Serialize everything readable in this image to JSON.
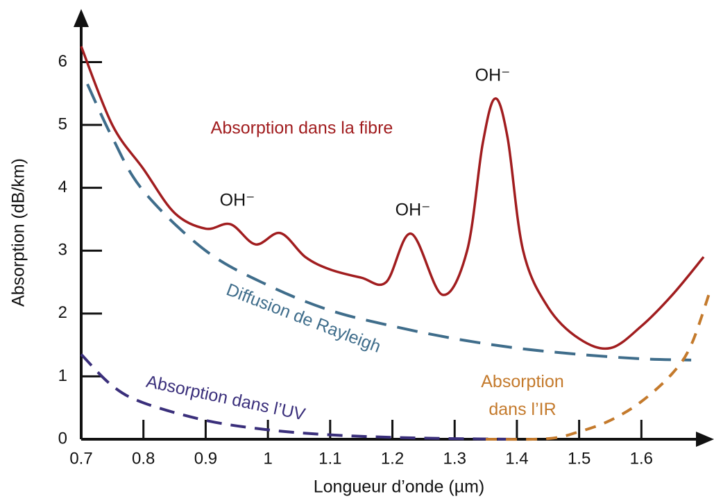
{
  "chart_data": {
    "type": "line",
    "xlabel": "Longueur d’onde (µm)",
    "ylabel": "Absorption (dB/km)",
    "xlim": [
      0.7,
      1.72
    ],
    "ylim": [
      0,
      6.8
    ],
    "xticks": [
      0.7,
      0.8,
      0.9,
      1.0,
      1.1,
      1.2,
      1.3,
      1.4,
      1.5,
      1.6
    ],
    "yticks": [
      0,
      1,
      2,
      3,
      4,
      5,
      6
    ],
    "series": [
      {
        "name": "Absorption dans la fibre",
        "color": "#a11d1f",
        "style": "solid",
        "x": [
          0.7,
          0.75,
          0.8,
          0.85,
          0.9,
          0.94,
          0.98,
          1.02,
          1.06,
          1.1,
          1.15,
          1.19,
          1.23,
          1.28,
          1.32,
          1.345,
          1.365,
          1.385,
          1.41,
          1.45,
          1.5,
          1.55,
          1.6,
          1.65,
          1.7
        ],
        "values": [
          6.25,
          5.0,
          4.3,
          3.6,
          3.35,
          3.42,
          3.1,
          3.28,
          2.9,
          2.7,
          2.57,
          2.5,
          3.27,
          2.3,
          3.0,
          4.7,
          5.42,
          4.8,
          3.0,
          2.1,
          1.6,
          1.45,
          1.8,
          2.3,
          2.9
        ]
      },
      {
        "name": "Diffusion de Rayleigh",
        "color": "#3f6d8b",
        "style": "dashed",
        "x": [
          0.71,
          0.75,
          0.8,
          0.9,
          1.0,
          1.1,
          1.2,
          1.3,
          1.4,
          1.5,
          1.6,
          1.68
        ],
        "values": [
          5.65,
          4.8,
          3.95,
          3.0,
          2.45,
          2.05,
          1.8,
          1.6,
          1.45,
          1.35,
          1.28,
          1.26
        ]
      },
      {
        "name": "Absorption dans l’UV",
        "color": "#3a2f7b",
        "style": "dashed",
        "x": [
          0.7,
          0.75,
          0.8,
          0.9,
          1.0,
          1.1,
          1.2,
          1.3,
          1.4
        ],
        "values": [
          1.35,
          0.85,
          0.58,
          0.3,
          0.15,
          0.07,
          0.03,
          0.01,
          0
        ]
      },
      {
        "name": "Absorption dans l’IR",
        "color": "#c47a2c",
        "style": "dashed",
        "x": [
          1.35,
          1.45,
          1.5,
          1.55,
          1.6,
          1.65,
          1.68,
          1.71
        ],
        "values": [
          0,
          0.01,
          0.12,
          0.3,
          0.6,
          1.05,
          1.5,
          2.35
        ]
      }
    ],
    "annotations": [
      "OH⁻",
      "OH⁻",
      "OH⁻"
    ]
  }
}
